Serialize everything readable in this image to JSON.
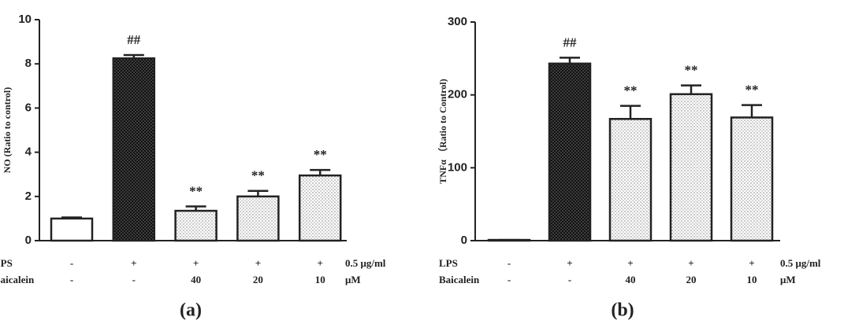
{
  "chart_data": [
    {
      "type": "bar",
      "panel_label": "(a)",
      "ylabel": "NO (Ratio to control)",
      "values": [
        1.0,
        8.25,
        1.35,
        2.0,
        2.95
      ],
      "errors": [
        0.05,
        0.15,
        0.2,
        0.25,
        0.25
      ],
      "annotations": [
        null,
        "##",
        "**",
        "**",
        "**"
      ],
      "ylim": [
        0,
        10
      ],
      "yticks": [
        0,
        2,
        4,
        6,
        8,
        10
      ],
      "treatments": [
        {
          "name": "LPS",
          "levels": [
            "-",
            "+",
            "+",
            "+",
            "+"
          ],
          "unit": "0.5 μg/ml"
        },
        {
          "name": "Baicalein",
          "levels": [
            "-",
            "-",
            "40",
            "20",
            "10"
          ],
          "unit": "μM"
        }
      ]
    },
    {
      "type": "bar",
      "panel_label": "(b)",
      "ylabel": "TNFα （Ratio to Control)",
      "values": [
        1,
        243,
        167,
        201,
        169
      ],
      "errors": [
        0,
        8,
        18,
        12,
        17
      ],
      "annotations": [
        null,
        "##",
        "**",
        "**",
        "**"
      ],
      "ylim": [
        0,
        300
      ],
      "yticks": [
        0,
        100,
        200,
        300
      ],
      "treatments": [
        {
          "name": "LPS",
          "levels": [
            "-",
            "+",
            "+",
            "+",
            "+"
          ],
          "unit": "0.5 μg/ml"
        },
        {
          "name": "Baicalein",
          "levels": [
            "-",
            "-",
            "40",
            "20",
            "10"
          ],
          "unit": "μM"
        }
      ]
    }
  ]
}
